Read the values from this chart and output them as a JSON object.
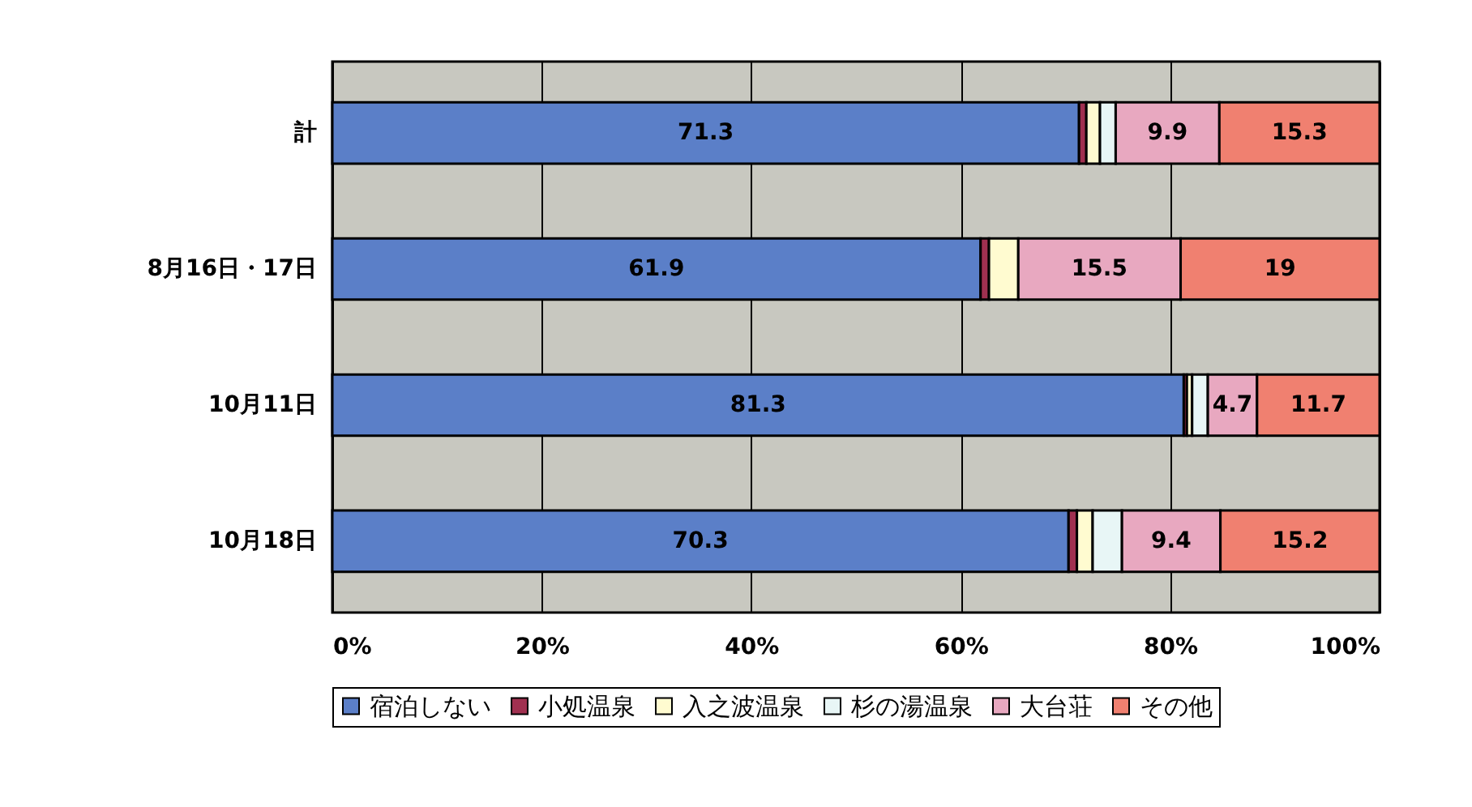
{
  "chart_data": {
    "type": "bar",
    "orientation": "horizontal",
    "stacked": true,
    "categories": [
      "計",
      "8月16日・17日",
      "10月11日",
      "10月18日"
    ],
    "series": [
      {
        "name": "宿泊しない",
        "color": "#5b7fc8",
        "values": [
          71.3,
          61.9,
          81.3,
          70.3
        ],
        "value_labels": [
          "71.3",
          "61.9",
          "81.3",
          "70.3"
        ]
      },
      {
        "name": "小処温泉",
        "color": "#a03050",
        "values": [
          0.7,
          0.8,
          0.3,
          0.8
        ],
        "value_labels": [
          null,
          null,
          null,
          null
        ]
      },
      {
        "name": "入之波温泉",
        "color": "#fffbd0",
        "values": [
          1.3,
          2.8,
          0.5,
          1.5
        ],
        "value_labels": [
          null,
          null,
          null,
          null
        ]
      },
      {
        "name": "杉の湯温泉",
        "color": "#e8f6f6",
        "values": [
          1.5,
          null,
          1.5,
          2.8
        ],
        "value_labels": [
          null,
          null,
          null,
          null
        ]
      },
      {
        "name": "大台荘",
        "color": "#e8a8c0",
        "values": [
          9.9,
          15.5,
          4.7,
          9.4
        ],
        "value_labels": [
          "9.9",
          "15.5",
          "4.7",
          "9.4"
        ]
      },
      {
        "name": "その他",
        "color": "#f08070",
        "values": [
          15.3,
          19,
          11.7,
          15.2
        ],
        "value_labels": [
          "15.3",
          "19",
          "11.7",
          "15.2"
        ]
      }
    ],
    "xlim": [
      0,
      100
    ],
    "xticks": [
      {
        "value": 0,
        "label": "0%"
      },
      {
        "value": 20,
        "label": "20%"
      },
      {
        "value": 40,
        "label": "40%"
      },
      {
        "value": 60,
        "label": "60%"
      },
      {
        "value": 80,
        "label": "80%"
      },
      {
        "value": 100,
        "label": "100%"
      }
    ],
    "grid": "x",
    "legend": "bottom"
  }
}
